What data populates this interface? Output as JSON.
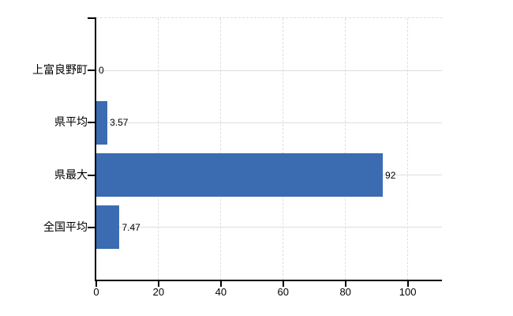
{
  "chart_data": {
    "type": "bar",
    "orientation": "horizontal",
    "title": "",
    "xlabel": "",
    "ylabel": "",
    "categories": [
      "上富良野町",
      "県平均",
      "県最大",
      "全国平均"
    ],
    "values": [
      0,
      3.57,
      92,
      7.47
    ],
    "value_labels": [
      "0",
      "3.57",
      "92",
      "7.47"
    ],
    "x_ticks": [
      0,
      20,
      40,
      60,
      80,
      100
    ],
    "xlim": [
      0,
      111
    ],
    "grid": true,
    "legend": false,
    "colors": {
      "bar": "#3b6cb2",
      "axis": "#000000",
      "grid": "#dddddd",
      "text": "#000000",
      "background": "#ffffff"
    }
  }
}
